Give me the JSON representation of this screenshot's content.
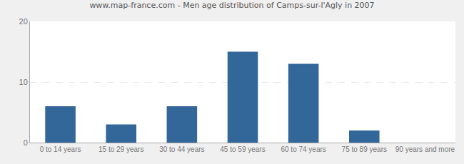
{
  "chart_data": {
    "type": "bar",
    "title": "www.map-france.com - Men age distribution of Camps-sur-l'Agly in 2007",
    "categories": [
      "0 to 14 years",
      "15 to 29 years",
      "30 to 44 years",
      "45 to 59 years",
      "60 to 74 years",
      "75 to 89 years",
      "90 years and more"
    ],
    "values": [
      6,
      3,
      6,
      15,
      13,
      2,
      0
    ],
    "color": "#336699",
    "ylim": [
      0,
      20
    ],
    "yticks": [
      0,
      10,
      20
    ],
    "grid": true
  }
}
